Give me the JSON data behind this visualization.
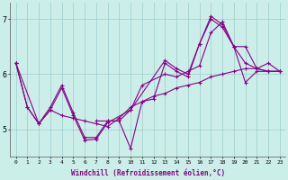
{
  "xlabel": "Windchill (Refroidissement éolien,°C)",
  "background_color": "#cceee8",
  "line_color": "#880088",
  "grid_color": "#99cccc",
  "xlim": [
    -0.5,
    23.5
  ],
  "ylim": [
    4.5,
    7.3
  ],
  "yticks": [
    5,
    6,
    7
  ],
  "xticks": [
    0,
    1,
    2,
    3,
    4,
    5,
    6,
    7,
    8,
    9,
    10,
    11,
    12,
    13,
    14,
    15,
    16,
    17,
    18,
    19,
    20,
    21,
    22,
    23
  ],
  "series": [
    {
      "x": [
        0,
        1,
        2,
        3,
        4,
        5,
        6,
        7,
        8,
        9,
        10,
        11,
        12,
        13,
        14,
        15,
        16,
        17,
        18,
        19,
        20,
        21,
        22,
        23
      ],
      "y": [
        6.2,
        5.4,
        5.1,
        5.4,
        5.8,
        5.3,
        4.85,
        4.85,
        5.15,
        5.15,
        4.65,
        5.5,
        5.55,
        6.2,
        6.05,
        5.95,
        6.55,
        7.0,
        6.85,
        6.5,
        6.2,
        6.1,
        6.05,
        6.05
      ]
    },
    {
      "x": [
        0,
        1,
        2,
        3,
        4,
        5,
        6,
        7,
        8,
        9,
        10,
        11,
        12,
        13,
        14,
        15,
        16,
        17,
        18,
        19,
        20,
        21,
        22,
        23
      ],
      "y": [
        6.2,
        5.4,
        5.1,
        5.35,
        5.25,
        5.2,
        5.15,
        5.1,
        5.05,
        5.2,
        5.4,
        5.5,
        5.6,
        5.65,
        5.75,
        5.8,
        5.85,
        5.95,
        6.0,
        6.05,
        6.1,
        6.1,
        6.05,
        6.05
      ]
    },
    {
      "x": [
        0,
        2,
        3,
        4,
        5,
        6,
        7,
        8,
        10,
        11,
        13,
        14,
        15,
        16,
        17,
        18,
        19,
        20,
        21,
        22,
        23
      ],
      "y": [
        6.2,
        5.1,
        5.35,
        5.75,
        5.25,
        4.8,
        4.82,
        5.12,
        5.35,
        5.8,
        6.0,
        5.95,
        6.05,
        6.15,
        6.75,
        6.95,
        6.5,
        5.85,
        6.05,
        6.05,
        6.05
      ]
    },
    {
      "x": [
        7,
        8,
        9,
        10,
        13,
        14,
        15,
        16,
        17,
        18,
        19,
        20,
        21,
        22,
        23
      ],
      "y": [
        5.15,
        5.15,
        5.15,
        5.35,
        6.25,
        6.1,
        6.0,
        6.55,
        7.05,
        6.9,
        6.5,
        6.5,
        6.1,
        6.2,
        6.05
      ]
    }
  ],
  "marker": "+",
  "markersize": 3,
  "linewidth": 0.8
}
